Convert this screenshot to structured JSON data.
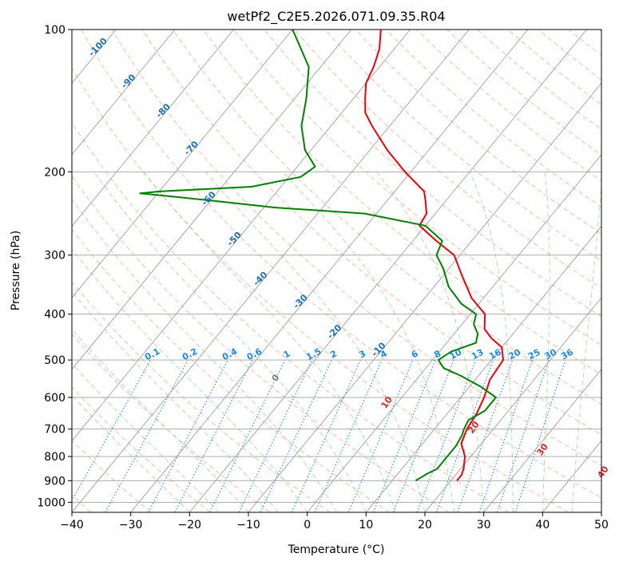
{
  "chart_data": {
    "type": "line",
    "subtype": "skew-t log-p diagram",
    "title": "wetPf2_C2E5.2026.071.09.35.R04",
    "xlabel": "Temperature (°C)",
    "ylabel": "Pressure (hPa)",
    "xlim": [
      -40,
      50
    ],
    "ylim": [
      1050,
      100
    ],
    "y_scale": "log",
    "grid": true,
    "x_ticks": [
      "−40",
      "−30",
      "−20",
      "−10",
      "0",
      "10",
      "20",
      "30",
      "40",
      "50"
    ],
    "y_ticks": [
      "100",
      "200",
      "300",
      "400",
      "500",
      "600",
      "700",
      "800",
      "900",
      "1000"
    ],
    "series": [
      {
        "color": "#e8000b",
        "pressure": [
          900,
          875,
          850,
          800,
          750,
          700,
          650,
          600,
          550,
          500,
          470,
          450,
          430,
          400,
          370,
          330,
          300,
          280,
          260,
          245,
          230,
          220,
          200,
          180,
          160,
          150,
          140,
          130,
          120,
          110,
          100
        ],
        "temperature": [
          21,
          21,
          20.5,
          19,
          16.5,
          15.5,
          15,
          14,
          12.5,
          12,
          10,
          7,
          4.5,
          2.5,
          -2,
          -7,
          -11,
          -16,
          -21,
          -21.5,
          -23.5,
          -25,
          -31,
          -37,
          -43,
          -46,
          -48,
          -50,
          -51,
          -52.5,
          -55
        ]
      },
      {
        "color": "#008000",
        "pressure": [
          900,
          870,
          850,
          800,
          760,
          720,
          700,
          670,
          640,
          600,
          570,
          540,
          520,
          500,
          480,
          460,
          440,
          420,
          400,
          380,
          350,
          320,
          300,
          280,
          260,
          245,
          238,
          230,
          225,
          222,
          220,
          215,
          205,
          195,
          180,
          160,
          140,
          120,
          100
        ],
        "dewpoint": [
          14,
          15,
          16,
          16,
          16,
          15.5,
          15,
          14.5,
          16,
          16,
          12,
          7,
          3,
          1,
          2,
          5,
          4,
          2,
          1,
          -3,
          -7.5,
          -11,
          -14,
          -15,
          -20,
          -32,
          -48,
          -60,
          -68,
          -73,
          -70,
          -55,
          -48,
          -47,
          -51,
          -55,
          -58,
          -62,
          -70
        ]
      }
    ],
    "annotations": {
      "dry_adiabat_labels": [
        "-100",
        "-90",
        "-80",
        "-70",
        "-60",
        "-50",
        "-40",
        "-30",
        "-20",
        "-10"
      ],
      "mixing_ratio_labels": [
        "0.1",
        "0.2",
        "0.4",
        "0.6",
        "1",
        "1.5",
        "2",
        "3",
        "4",
        "6",
        "8",
        "10",
        "13",
        "16",
        "20",
        "25",
        "30",
        "36"
      ],
      "moist_adiabat_labels": [
        "0",
        "10",
        "20",
        "30",
        "40"
      ]
    },
    "colors": {
      "temperature": "#e8000b",
      "dewpoint": "#008000",
      "isotherm_grid": "#a0a0a0",
      "dry_adiabat": "#f4a58a",
      "moist_adiabat": "#9fd49f",
      "mixing_ratio": "#1f88e5",
      "dry_adiabat_label": "#1f6fb4",
      "mixing_ratio_label": "#1f88e5",
      "moist_zero_label": "#808080",
      "moist_label": "#d62728"
    }
  }
}
